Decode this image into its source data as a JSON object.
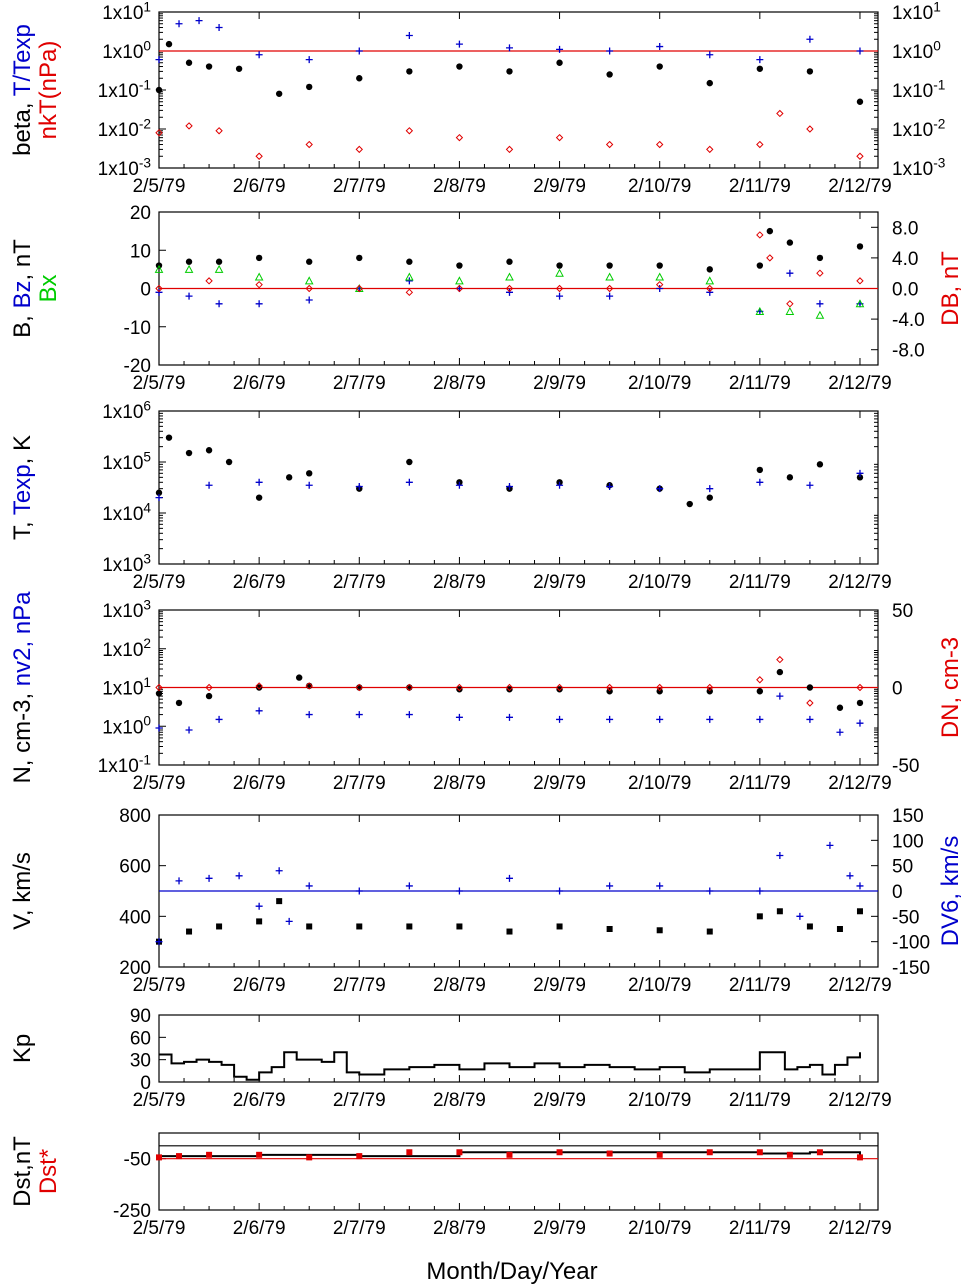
{
  "figure": {
    "x_tick_labels": [
      "2/5/79",
      "2/6/79",
      "2/7/79",
      "2/8/79",
      "2/9/79",
      "2/10/79",
      "2/11/79",
      "2/12/79"
    ],
    "xlabel": "Month/Day/Year",
    "colors": {
      "black": "#000000",
      "blue": "#0000cc",
      "red": "#e00000",
      "green": "#00cc00"
    }
  },
  "chart_data": [
    {
      "id": "beta",
      "type": "scatter",
      "scale": "log",
      "ylabel_parts": [
        {
          "text": "beta, ",
          "color": "#000000"
        },
        {
          "text": "T/Texp",
          "color": "#0000cc"
        }
      ],
      "ylabel2_parts": [
        {
          "text": "nkT(nPa)",
          "color": "#e00000"
        }
      ],
      "ylim": [
        0.001,
        10
      ],
      "y_ticks": [
        "1x10-3",
        "1x10-2",
        "1x10-1",
        "1x100",
        "1x101"
      ],
      "y_ticks_right": [
        "1x10-3",
        "1x10-2",
        "1x10-1",
        "1x100",
        "1x101"
      ],
      "reference_line": {
        "value": 1,
        "color": "#e00000"
      },
      "series": [
        {
          "label": "beta",
          "color": "#000000",
          "marker": "dot",
          "x": [
            0.0,
            0.1,
            0.3,
            0.5,
            0.8,
            1.2,
            1.5,
            2.0,
            2.5,
            3.0,
            3.5,
            4.0,
            4.5,
            5.0,
            5.5,
            6.0,
            6.5,
            7.0
          ],
          "y": [
            0.1,
            1.5,
            0.5,
            0.4,
            0.35,
            0.08,
            0.12,
            0.2,
            0.3,
            0.4,
            0.3,
            0.5,
            0.25,
            0.4,
            0.15,
            0.35,
            0.3,
            0.05
          ]
        },
        {
          "label": "T/Texp",
          "color": "#0000cc",
          "marker": "plus",
          "x": [
            0.0,
            0.2,
            0.4,
            0.6,
            1.0,
            1.5,
            2.0,
            2.5,
            3.0,
            3.5,
            4.0,
            4.5,
            5.0,
            5.5,
            6.0,
            6.5,
            7.0
          ],
          "y": [
            0.6,
            5.0,
            6.0,
            4.0,
            0.8,
            0.6,
            1.0,
            2.5,
            1.5,
            1.2,
            1.1,
            1.0,
            1.3,
            0.8,
            0.6,
            2.0,
            1.0
          ]
        },
        {
          "label": "nkT",
          "color": "#e00000",
          "marker": "diamond",
          "x": [
            0.0,
            0.3,
            0.6,
            1.0,
            1.5,
            2.0,
            2.5,
            3.0,
            3.5,
            4.0,
            4.5,
            5.0,
            5.5,
            6.0,
            6.2,
            6.5,
            7.0
          ],
          "y": [
            0.008,
            0.012,
            0.009,
            0.002,
            0.004,
            0.003,
            0.009,
            0.006,
            0.003,
            0.006,
            0.004,
            0.004,
            0.003,
            0.004,
            0.025,
            0.01,
            0.002
          ]
        }
      ]
    },
    {
      "id": "b",
      "type": "scatter",
      "scale": "linear",
      "ylabel_parts": [
        {
          "text": "B, ",
          "color": "#000000"
        },
        {
          "text": "Bz",
          "color": "#0000cc"
        },
        {
          "text": ", nT",
          "color": "#000000"
        }
      ],
      "ylabel2_parts": [
        {
          "text": "Bx",
          "color": "#00cc00"
        }
      ],
      "right_label_parts": [
        {
          "text": "DB, nT",
          "color": "#e00000"
        }
      ],
      "ylim": [
        -20,
        20
      ],
      "y_ticks": [
        "-20",
        "-10",
        "0",
        "10",
        "20"
      ],
      "right_ylim": [
        -10,
        10
      ],
      "y_ticks_right": [
        "-8.0",
        "-4.0",
        "0.0",
        "4.0",
        "8.0"
      ],
      "reference_line": {
        "value": 0,
        "color": "#e00000"
      },
      "series": [
        {
          "label": "B",
          "color": "#000000",
          "marker": "dot",
          "x": [
            0.0,
            0.3,
            0.6,
            1.0,
            1.5,
            2.0,
            2.5,
            3.0,
            3.5,
            4.0,
            4.5,
            5.0,
            5.5,
            6.0,
            6.1,
            6.3,
            6.6,
            7.0
          ],
          "y": [
            6,
            7,
            7,
            8,
            7,
            8,
            7,
            6,
            7,
            6,
            6,
            6,
            5,
            6,
            15,
            12,
            8,
            11
          ]
        },
        {
          "label": "Bz",
          "color": "#0000cc",
          "marker": "plus",
          "x": [
            0.0,
            0.3,
            0.6,
            1.0,
            1.5,
            2.0,
            2.5,
            3.0,
            3.5,
            4.0,
            4.5,
            5.0,
            5.5,
            6.0,
            6.3,
            6.6,
            7.0
          ],
          "y": [
            -1,
            -2,
            -4,
            -4,
            -3,
            0,
            2,
            0,
            -1,
            -2,
            -2,
            0,
            -1,
            -6,
            4,
            -4,
            -4
          ]
        },
        {
          "label": "Bx",
          "color": "#00cc00",
          "marker": "triangle",
          "x": [
            0.0,
            0.3,
            0.6,
            1.0,
            1.5,
            2.0,
            2.5,
            3.0,
            3.5,
            4.0,
            4.5,
            5.0,
            5.5,
            6.0,
            6.3,
            6.6,
            7.0
          ],
          "y": [
            5,
            5,
            5,
            3,
            2,
            0,
            3,
            2,
            3,
            4,
            3,
            3,
            2,
            -6,
            -6,
            -7,
            -4
          ]
        },
        {
          "label": "DB",
          "color": "#e00000",
          "marker": "diamond",
          "axis": "right",
          "x": [
            0.0,
            0.5,
            1.0,
            1.5,
            2.0,
            2.5,
            3.0,
            3.5,
            4.0,
            4.5,
            5.0,
            5.5,
            6.0,
            6.1,
            6.3,
            6.6,
            7.0
          ],
          "y": [
            0,
            1,
            0.5,
            0,
            0,
            -0.5,
            0,
            0,
            0,
            0,
            0.5,
            0,
            7,
            4,
            -2,
            2,
            1
          ]
        }
      ]
    },
    {
      "id": "t",
      "type": "scatter",
      "scale": "log",
      "ylabel_parts": [
        {
          "text": "T, ",
          "color": "#000000"
        },
        {
          "text": "Texp",
          "color": "#0000cc"
        },
        {
          "text": ", K",
          "color": "#000000"
        }
      ],
      "ylim": [
        1000,
        1000000
      ],
      "y_ticks": [
        "1x103",
        "1x104",
        "1x105",
        "1x106"
      ],
      "series": [
        {
          "label": "T",
          "color": "#000000",
          "marker": "dot",
          "x": [
            0.0,
            0.1,
            0.3,
            0.5,
            0.7,
            1.0,
            1.3,
            1.5,
            2.0,
            2.5,
            3.0,
            3.5,
            4.0,
            4.5,
            5.0,
            5.3,
            5.5,
            6.0,
            6.3,
            6.6,
            7.0
          ],
          "y": [
            25000,
            300000,
            150000,
            170000,
            100000,
            20000,
            50000,
            60000,
            30000,
            100000,
            40000,
            30000,
            40000,
            35000,
            30000,
            15000,
            20000,
            70000,
            50000,
            90000,
            50000
          ]
        },
        {
          "label": "Texp",
          "color": "#0000cc",
          "marker": "plus",
          "x": [
            0.0,
            0.5,
            1.0,
            1.5,
            2.0,
            2.5,
            3.0,
            3.5,
            4.0,
            4.5,
            5.0,
            5.5,
            6.0,
            6.5,
            7.0
          ],
          "y": [
            20000,
            35000,
            40000,
            35000,
            33000,
            40000,
            35000,
            33000,
            35000,
            33000,
            30000,
            30000,
            40000,
            35000,
            60000
          ]
        }
      ]
    },
    {
      "id": "n",
      "type": "scatter",
      "scale": "log",
      "ylabel_parts": [
        {
          "text": "N, cm-3, ",
          "color": "#000000"
        },
        {
          "text": "nv2, nPa",
          "color": "#0000cc"
        }
      ],
      "right_label_parts": [
        {
          "text": "DN, cm-3",
          "color": "#e00000"
        }
      ],
      "ylim": [
        0.1,
        1000
      ],
      "y_ticks": [
        "1x10-1",
        "1x100",
        "1x101",
        "1x102",
        "1x103"
      ],
      "right_ylim": [
        -50,
        50
      ],
      "y_ticks_right": [
        "-50",
        "0",
        "50"
      ],
      "reference_line": {
        "value": 10,
        "color": "#e00000"
      },
      "series": [
        {
          "label": "N",
          "color": "#000000",
          "marker": "dot",
          "x": [
            0.0,
            0.2,
            0.5,
            1.0,
            1.4,
            1.5,
            2.0,
            2.5,
            3.0,
            3.5,
            4.0,
            4.5,
            5.0,
            5.5,
            6.0,
            6.2,
            6.5,
            6.8,
            7.0
          ],
          "y": [
            7,
            4,
            6,
            10,
            18,
            11,
            10,
            10,
            9,
            9,
            9,
            8,
            8,
            8,
            8,
            25,
            10,
            3,
            4
          ]
        },
        {
          "label": "nv2",
          "color": "#0000cc",
          "marker": "plus",
          "x": [
            0.0,
            0.3,
            0.6,
            1.0,
            1.5,
            2.0,
            2.5,
            3.0,
            3.5,
            4.0,
            4.5,
            5.0,
            5.5,
            6.0,
            6.2,
            6.5,
            6.8,
            7.0
          ],
          "y": [
            0.9,
            0.8,
            1.5,
            2.5,
            2,
            2,
            2,
            1.7,
            1.7,
            1.5,
            1.5,
            1.5,
            1.5,
            1.5,
            6,
            1.5,
            0.7,
            1.2
          ]
        },
        {
          "label": "DN",
          "color": "#e00000",
          "marker": "diamond",
          "axis": "right",
          "x": [
            0.0,
            0.5,
            1.0,
            1.5,
            2.0,
            2.5,
            3.0,
            3.5,
            4.0,
            4.5,
            5.0,
            5.5,
            6.0,
            6.2,
            6.5,
            7.0
          ],
          "y": [
            0,
            0,
            1,
            1,
            0,
            0,
            0,
            0,
            0,
            0,
            0,
            0,
            5,
            18,
            -10,
            0
          ]
        }
      ]
    },
    {
      "id": "v",
      "type": "scatter",
      "scale": "linear",
      "ylabel_parts": [
        {
          "text": "V, km/s",
          "color": "#000000"
        }
      ],
      "right_label_parts": [
        {
          "text": "DV6, km/s",
          "color": "#0000cc"
        }
      ],
      "ylim": [
        200,
        800
      ],
      "y_ticks": [
        "200",
        "400",
        "600",
        "800"
      ],
      "right_ylim": [
        -150,
        150
      ],
      "y_ticks_right": [
        "-150",
        "-100",
        "-50",
        "0",
        "50",
        "100",
        "150"
      ],
      "reference_line": {
        "value": 500,
        "color": "#0000cc"
      },
      "series": [
        {
          "label": "V",
          "color": "#000000",
          "marker": "square",
          "x": [
            0.0,
            0.3,
            0.6,
            1.0,
            1.2,
            1.5,
            2.0,
            2.5,
            3.0,
            3.5,
            4.0,
            4.5,
            5.0,
            5.5,
            6.0,
            6.2,
            6.5,
            6.8,
            7.0
          ],
          "y": [
            300,
            340,
            360,
            380,
            460,
            360,
            360,
            360,
            360,
            340,
            360,
            350,
            345,
            340,
            400,
            420,
            360,
            350,
            420
          ]
        },
        {
          "label": "DV6",
          "color": "#0000cc",
          "marker": "plus",
          "axis": "right",
          "x": [
            0.0,
            0.2,
            0.5,
            0.8,
            1.0,
            1.2,
            1.3,
            1.5,
            2.0,
            2.5,
            3.0,
            3.5,
            4.0,
            4.5,
            5.0,
            5.5,
            6.0,
            6.2,
            6.4,
            6.7,
            6.9,
            7.0
          ],
          "y": [
            -100,
            20,
            25,
            30,
            -30,
            40,
            -60,
            10,
            0,
            10,
            0,
            25,
            0,
            10,
            10,
            0,
            0,
            70,
            -50,
            90,
            30,
            10
          ]
        }
      ]
    },
    {
      "id": "kp",
      "type": "line",
      "scale": "linear",
      "ylabel_parts": [
        {
          "text": "Kp",
          "color": "#000000"
        }
      ],
      "ylim": [
        0,
        90
      ],
      "y_ticks": [
        "0",
        "30",
        "60",
        "90"
      ],
      "series": [
        {
          "label": "Kp",
          "color": "#000000",
          "x": [
            0.0,
            0.125,
            0.25,
            0.375,
            0.5,
            0.625,
            0.75,
            0.875,
            1.0,
            1.125,
            1.25,
            1.375,
            1.5,
            1.625,
            1.75,
            1.875,
            2.0,
            2.25,
            2.5,
            2.75,
            3.0,
            3.25,
            3.5,
            3.75,
            4.0,
            4.25,
            4.5,
            4.75,
            5.0,
            5.25,
            5.5,
            5.75,
            6.0,
            6.125,
            6.25,
            6.375,
            6.5,
            6.625,
            6.75,
            6.875,
            7.0
          ],
          "y": [
            37,
            25,
            27,
            30,
            27,
            23,
            7,
            3,
            13,
            20,
            40,
            30,
            30,
            27,
            40,
            13,
            10,
            17,
            20,
            23,
            17,
            25,
            20,
            25,
            20,
            23,
            20,
            17,
            20,
            13,
            17,
            17,
            40,
            40,
            17,
            20,
            23,
            10,
            23,
            33,
            40
          ]
        }
      ]
    },
    {
      "id": "dst",
      "type": "scatter",
      "scale": "linear",
      "ylabel_parts": [
        {
          "text": "Dst,nT",
          "color": "#000000"
        }
      ],
      "ylabel2_parts": [
        {
          "text": "Dst*",
          "color": "#e00000"
        }
      ],
      "ylim": [
        -250,
        50
      ],
      "y_ticks": [
        "-250",
        "-50"
      ],
      "reference_line": {
        "value": 0,
        "color": "#000000"
      },
      "reference_line_2": {
        "value": -50,
        "color": "#e00000"
      },
      "series": [
        {
          "label": "Dst",
          "color": "#000000",
          "marker": "none",
          "x": [
            0.0,
            1.0,
            2.0,
            3.0,
            4.0,
            5.0,
            6.0,
            6.5,
            7.0
          ],
          "y": [
            -40,
            -35,
            -40,
            -25,
            -25,
            -25,
            -30,
            -25,
            -45
          ]
        },
        {
          "label": "Dst*",
          "color": "#e00000",
          "marker": "square",
          "x": [
            0.0,
            0.2,
            0.5,
            1.0,
            1.5,
            2.0,
            2.5,
            3.0,
            3.5,
            4.0,
            4.5,
            5.0,
            5.5,
            6.0,
            6.3,
            6.6,
            7.0
          ],
          "y": [
            -45,
            -40,
            -35,
            -35,
            -45,
            -40,
            -25,
            -25,
            -35,
            -25,
            -30,
            -35,
            -25,
            -25,
            -35,
            -25,
            -45
          ]
        }
      ]
    }
  ]
}
